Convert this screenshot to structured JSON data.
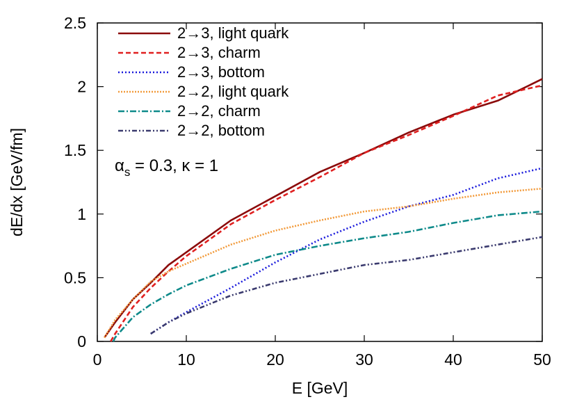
{
  "chart_data": {
    "type": "line",
    "title": "",
    "xlabel": "E [GeV]",
    "ylabel": "dE/dx [GeV/fm]",
    "xlim": [
      0,
      50
    ],
    "ylim": [
      0,
      2.5
    ],
    "xticks": [
      0,
      10,
      20,
      30,
      40,
      50
    ],
    "yticks": [
      0,
      0.5,
      1,
      1.5,
      2,
      2.5
    ],
    "xtick_labels": [
      "0",
      "10",
      "20",
      "30",
      "40",
      "50"
    ],
    "ytick_labels": [
      "0",
      "0.5",
      "1",
      "1.5",
      "2",
      "2.5"
    ],
    "annotation": {
      "alpha": "α",
      "sub": "s",
      "rest": " = 0.3, κ = 1"
    },
    "legend_position": "top-left",
    "series": [
      {
        "name": "2→3, light quark",
        "color": "#8b0a0a",
        "dash": "",
        "x": [
          0.8,
          2,
          4,
          6,
          8,
          10,
          15,
          20,
          25,
          30,
          35,
          40,
          45,
          50
        ],
        "y": [
          0.03,
          0.15,
          0.33,
          0.46,
          0.6,
          0.7,
          0.95,
          1.14,
          1.33,
          1.48,
          1.64,
          1.78,
          1.89,
          2.06
        ]
      },
      {
        "name": "2→3, charm",
        "color": "#e02020",
        "dash": "7,4",
        "x": [
          1.5,
          2,
          4,
          6,
          8,
          10,
          15,
          20,
          25,
          30,
          35,
          40,
          45,
          50
        ],
        "y": [
          0.0,
          0.06,
          0.27,
          0.42,
          0.55,
          0.67,
          0.92,
          1.11,
          1.29,
          1.48,
          1.62,
          1.77,
          1.93,
          2.01
        ]
      },
      {
        "name": "2→3, bottom",
        "color": "#1a1adc",
        "dash": "2,3",
        "x": [
          6,
          8,
          10,
          15,
          20,
          25,
          30,
          35,
          40,
          45,
          50
        ],
        "y": [
          0.06,
          0.15,
          0.23,
          0.42,
          0.62,
          0.8,
          0.94,
          1.06,
          1.15,
          1.28,
          1.36
        ]
      },
      {
        "name": "2→2, light quark",
        "color": "#f29a3a",
        "dash": "2,2",
        "x": [
          0.8,
          2,
          4,
          6,
          8,
          10,
          15,
          20,
          25,
          30,
          35,
          40,
          45,
          50
        ],
        "y": [
          0.03,
          0.17,
          0.33,
          0.47,
          0.55,
          0.61,
          0.76,
          0.87,
          0.95,
          1.02,
          1.06,
          1.12,
          1.17,
          1.2
        ]
      },
      {
        "name": "2→2, charm",
        "color": "#0e8a8a",
        "dash": "9,3,2,3",
        "x": [
          1.8,
          2,
          4,
          6,
          8,
          10,
          15,
          20,
          25,
          30,
          35,
          40,
          45,
          50
        ],
        "y": [
          0.0,
          0.03,
          0.19,
          0.29,
          0.37,
          0.44,
          0.57,
          0.68,
          0.75,
          0.81,
          0.86,
          0.93,
          0.99,
          1.02
        ]
      },
      {
        "name": "2→2, bottom",
        "color": "#3a3a6e",
        "dash": "7,3,2,3,2,3",
        "x": [
          6,
          8,
          10,
          15,
          20,
          25,
          30,
          35,
          40,
          45,
          50
        ],
        "y": [
          0.06,
          0.15,
          0.22,
          0.36,
          0.46,
          0.53,
          0.6,
          0.64,
          0.7,
          0.76,
          0.82
        ]
      }
    ]
  }
}
